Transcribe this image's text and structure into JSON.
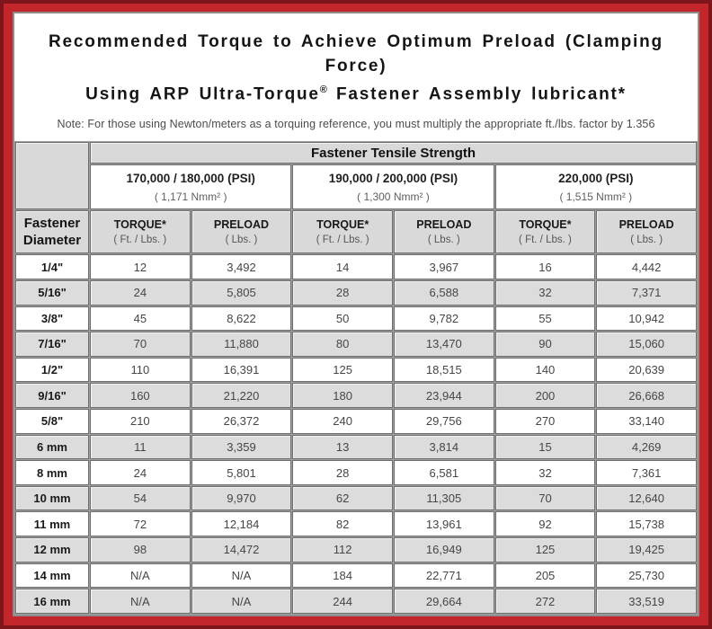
{
  "colors": {
    "frame_red": "#c3262b",
    "frame_dark_edge": "#7d151a",
    "panel_border": "#8d8d8d",
    "row_shade": "#dcdcdc",
    "header_shade": "#d9d9d9"
  },
  "header": {
    "title_line1": "Recommended Torque to Achieve Optimum Preload (Clamping Force)",
    "title_line2_pre": "Using ARP Ultra-Torque",
    "title_reg_mark": "®",
    "title_line2_post": " Fastener Assembly lubricant*",
    "note": "Note: For those using Newton/meters as a torquing reference, you must multiply the appropriate ft./lbs. factor by 1.356"
  },
  "table": {
    "tensile_strength_header": "Fastener Tensile Strength",
    "diameter_header_line1": "Fastener",
    "diameter_header_line2": "Diameter",
    "strength_groups": [
      {
        "psi": "170,000 / 180,000 (PSI)",
        "nmm": "( 1,171 Nmm² )"
      },
      {
        "psi": "190,000 / 200,000 (PSI)",
        "nmm": "( 1,300 Nmm² )"
      },
      {
        "psi": "220,000 (PSI)",
        "nmm": "( 1,515 Nmm² )"
      }
    ],
    "torque_label": "TORQUE*",
    "torque_sub": "( Ft. / Lbs. )",
    "preload_label": "PRELOAD",
    "preload_sub": "( Lbs. )",
    "rows": [
      {
        "diameter": "1/4\"",
        "values": [
          "12",
          "3,492",
          "14",
          "3,967",
          "16",
          "4,442"
        ]
      },
      {
        "diameter": "5/16\"",
        "values": [
          "24",
          "5,805",
          "28",
          "6,588",
          "32",
          "7,371"
        ]
      },
      {
        "diameter": "3/8\"",
        "values": [
          "45",
          "8,622",
          "50",
          "9,782",
          "55",
          "10,942"
        ]
      },
      {
        "diameter": "7/16\"",
        "values": [
          "70",
          "11,880",
          "80",
          "13,470",
          "90",
          "15,060"
        ]
      },
      {
        "diameter": "1/2\"",
        "values": [
          "110",
          "16,391",
          "125",
          "18,515",
          "140",
          "20,639"
        ]
      },
      {
        "diameter": "9/16\"",
        "values": [
          "160",
          "21,220",
          "180",
          "23,944",
          "200",
          "26,668"
        ]
      },
      {
        "diameter": "5/8\"",
        "values": [
          "210",
          "26,372",
          "240",
          "29,756",
          "270",
          "33,140"
        ]
      },
      {
        "diameter": "6 mm",
        "values": [
          "11",
          "3,359",
          "13",
          "3,814",
          "15",
          "4,269"
        ]
      },
      {
        "diameter": "8 mm",
        "values": [
          "24",
          "5,801",
          "28",
          "6,581",
          "32",
          "7,361"
        ]
      },
      {
        "diameter": "10 mm",
        "values": [
          "54",
          "9,970",
          "62",
          "11,305",
          "70",
          "12,640"
        ]
      },
      {
        "diameter": "11 mm",
        "values": [
          "72",
          "12,184",
          "82",
          "13,961",
          "92",
          "15,738"
        ]
      },
      {
        "diameter": "12 mm",
        "values": [
          "98",
          "14,472",
          "112",
          "16,949",
          "125",
          "19,425"
        ]
      },
      {
        "diameter": "14 mm",
        "values": [
          "N/A",
          "N/A",
          "184",
          "22,771",
          "205",
          "25,730"
        ]
      },
      {
        "diameter": "16 mm",
        "values": [
          "N/A",
          "N/A",
          "244",
          "29,664",
          "272",
          "33,519"
        ]
      }
    ]
  }
}
